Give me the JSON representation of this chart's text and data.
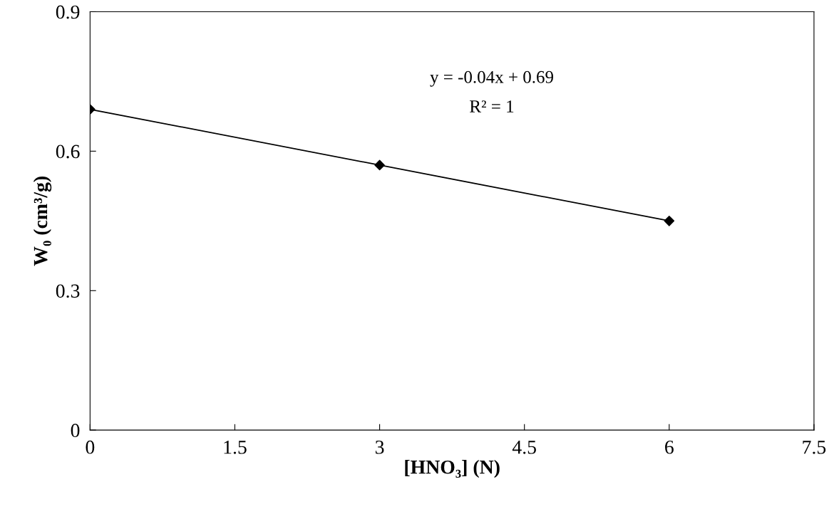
{
  "chart_data": {
    "type": "scatter",
    "xlabel": "[HNO₃] (N)",
    "ylabel": "W₀ (cm³/g)",
    "series": [
      {
        "color": "#000000",
        "marker": "diamond",
        "x": [
          0,
          3,
          6
        ],
        "values": [
          0.69,
          0.57,
          0.45
        ]
      },
      {
        "type": "line",
        "color": "#000000",
        "marker": "none",
        "line_style": "solid",
        "x": [
          0,
          6
        ],
        "values": [
          0.69,
          0.45
        ]
      }
    ],
    "annotations": [
      "y = -0.04x + 0.69",
      "R² = 1"
    ],
    "xlim": [
      0,
      7.5
    ],
    "xticks": [
      0,
      1.5,
      3,
      4.5,
      6,
      7.5
    ],
    "ylim": [
      0,
      0.9
    ],
    "yticks": [
      0,
      0.3,
      0.6,
      0.9
    ],
    "grid": false,
    "legend": false
  }
}
